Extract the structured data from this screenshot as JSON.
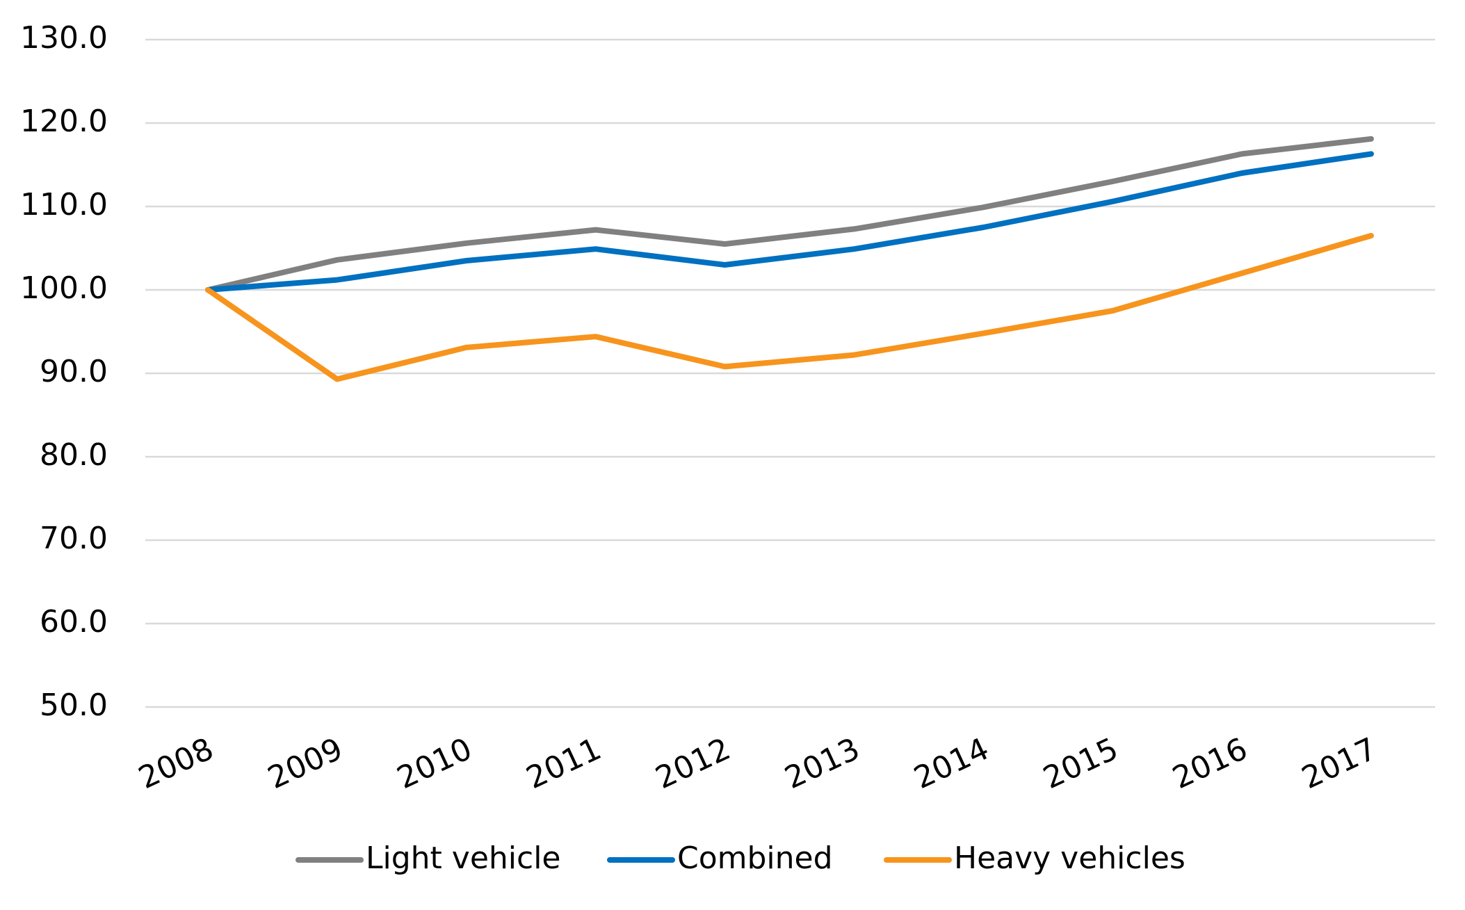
{
  "chart_data": {
    "type": "line",
    "categories": [
      "2008",
      "2009",
      "2010",
      "2011",
      "2012",
      "2013",
      "2014",
      "2015",
      "2016",
      "2017"
    ],
    "series": [
      {
        "name": "Light vehicle",
        "color": "#808080",
        "values": [
          100,
          103.6,
          105.6,
          107.2,
          105.5,
          107.3,
          109.9,
          113.0,
          116.3,
          118.1
        ]
      },
      {
        "name": "Combined",
        "color": "#0070c0",
        "values": [
          100,
          101.2,
          103.5,
          104.9,
          103.0,
          104.9,
          107.5,
          110.6,
          114.0,
          116.3
        ]
      },
      {
        "name": "Heavy vehicles",
        "color": "#f7941d",
        "values": [
          100,
          89.3,
          93.1,
          94.4,
          90.8,
          92.2,
          94.8,
          97.5,
          102.0,
          106.5
        ]
      }
    ],
    "ylim": [
      50,
      130
    ],
    "yticks": [
      {
        "value": 50,
        "label": "50.0"
      },
      {
        "value": 60,
        "label": "60.0"
      },
      {
        "value": 70,
        "label": "70.0"
      },
      {
        "value": 80,
        "label": "80.0"
      },
      {
        "value": 90,
        "label": "90.0"
      },
      {
        "value": 100,
        "label": "100.0"
      },
      {
        "value": 110,
        "label": "110.0"
      },
      {
        "value": 120,
        "label": "120.0"
      },
      {
        "value": 130,
        "label": "130.0"
      }
    ],
    "grid": true,
    "legend": "bottom"
  }
}
